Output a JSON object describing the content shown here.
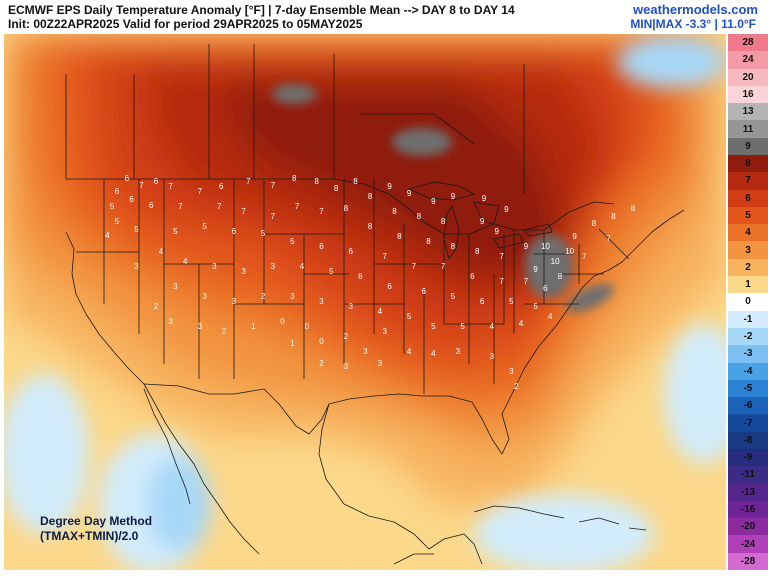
{
  "header": {
    "title": "ECMWF EPS Daily Temperature Anomaly [°F] | 7-day Ensemble Mean --> DAY 8 to DAY 14",
    "subtitle": "Init: 00Z22APR2025 Valid for period 29APR2025 to 05MAY2025",
    "brand": "weathermodels.com",
    "minmax": "MIN|MAX -3.3° | 11.0°F"
  },
  "method": {
    "line1": "Degree Day Method",
    "line2": "(TMAX+TMIN)/2.0"
  },
  "legend": {
    "items": [
      {
        "label": "28",
        "color": "#f07a8c",
        "text_color": "#111111"
      },
      {
        "label": "24",
        "color": "#f49aa6",
        "text_color": "#111111"
      },
      {
        "label": "20",
        "color": "#f8b8c0",
        "text_color": "#111111"
      },
      {
        "label": "16",
        "color": "#fbd3d8",
        "text_color": "#111111"
      },
      {
        "label": "13",
        "color": "#b4b4b4",
        "text_color": "#111111"
      },
      {
        "label": "11",
        "color": "#969696",
        "text_color": "#111111"
      },
      {
        "label": "9",
        "color": "#6e6e6e",
        "text_color": "#111111"
      },
      {
        "label": "8",
        "color": "#8f1c0c",
        "text_color": "#111111"
      },
      {
        "label": "7",
        "color": "#b52a10",
        "text_color": "#111111"
      },
      {
        "label": "6",
        "color": "#d13d14",
        "text_color": "#111111"
      },
      {
        "label": "5",
        "color": "#e2561c",
        "text_color": "#111111"
      },
      {
        "label": "4",
        "color": "#ec7428",
        "text_color": "#111111"
      },
      {
        "label": "3",
        "color": "#f29440",
        "text_color": "#111111"
      },
      {
        "label": "2",
        "color": "#f7b35e",
        "text_color": "#111111"
      },
      {
        "label": "1",
        "color": "#fbd88a",
        "text_color": "#111111"
      },
      {
        "label": "0",
        "color": "#ffffff",
        "text_color": "#111111"
      },
      {
        "label": "-1",
        "color": "#d2ecfb",
        "text_color": "#111111"
      },
      {
        "label": "-2",
        "color": "#a8d8f8",
        "text_color": "#111111"
      },
      {
        "label": "-3",
        "color": "#7cc1f2",
        "text_color": "#111111"
      },
      {
        "label": "-4",
        "color": "#4aa2e6",
        "text_color": "#111111"
      },
      {
        "label": "-5",
        "color": "#2a82d4",
        "text_color": "#111111"
      },
      {
        "label": "-6",
        "color": "#1b62b8",
        "text_color": "#111111"
      },
      {
        "label": "-7",
        "color": "#14499c",
        "text_color": "#111111"
      },
      {
        "label": "-8",
        "color": "#183a82",
        "text_color": "#111111"
      },
      {
        "label": "-9",
        "color": "#262d7e",
        "text_color": "#111111"
      },
      {
        "label": "-11",
        "color": "#3b2a86",
        "text_color": "#111111"
      },
      {
        "label": "-13",
        "color": "#54268e",
        "text_color": "#111111"
      },
      {
        "label": "-16",
        "color": "#6e2496",
        "text_color": "#111111"
      },
      {
        "label": "-20",
        "color": "#8c2aa0",
        "text_color": "#111111"
      },
      {
        "label": "-24",
        "color": "#b040b8",
        "text_color": "#111111"
      },
      {
        "label": "-28",
        "color": "#d36ad0",
        "text_color": "#111111"
      }
    ]
  },
  "station_values": [
    {
      "label": "6",
      "lon": -121.5,
      "lat": 48.3
    },
    {
      "label": "7",
      "lon": -120.0,
      "lat": 47.6
    },
    {
      "label": "6",
      "lon": -118.5,
      "lat": 48.0
    },
    {
      "label": "7",
      "lon": -117.0,
      "lat": 47.5
    },
    {
      "label": "6",
      "lon": -122.5,
      "lat": 47.0
    },
    {
      "label": "6",
      "lon": -121.0,
      "lat": 46.2
    },
    {
      "label": "5",
      "lon": -123.0,
      "lat": 45.5
    },
    {
      "label": "6",
      "lon": -119.0,
      "lat": 45.6
    },
    {
      "label": "5",
      "lon": -122.5,
      "lat": 44.0
    },
    {
      "label": "4",
      "lon": -123.5,
      "lat": 42.6
    },
    {
      "label": "5",
      "lon": -120.5,
      "lat": 43.2
    },
    {
      "label": "7",
      "lon": -116.0,
      "lat": 45.5
    },
    {
      "label": "7",
      "lon": -114.0,
      "lat": 47.0
    },
    {
      "label": "6",
      "lon": -111.8,
      "lat": 47.5
    },
    {
      "label": "7",
      "lon": -109.0,
      "lat": 48.0
    },
    {
      "label": "7",
      "lon": -106.5,
      "lat": 47.6
    },
    {
      "label": "8",
      "lon": -104.3,
      "lat": 48.3
    },
    {
      "label": "8",
      "lon": -102.0,
      "lat": 48.0
    },
    {
      "label": "8",
      "lon": -100.0,
      "lat": 47.3
    },
    {
      "label": "8",
      "lon": -98.0,
      "lat": 48.0
    },
    {
      "label": "7",
      "lon": -112.0,
      "lat": 45.5
    },
    {
      "label": "7",
      "lon": -109.5,
      "lat": 45.0
    },
    {
      "label": "7",
      "lon": -106.5,
      "lat": 44.5
    },
    {
      "label": "7",
      "lon": -104.0,
      "lat": 45.5
    },
    {
      "label": "7",
      "lon": -101.5,
      "lat": 45.0
    },
    {
      "label": "8",
      "lon": -99.0,
      "lat": 45.3
    },
    {
      "label": "8",
      "lon": -96.5,
      "lat": 46.5
    },
    {
      "label": "9",
      "lon": -94.5,
      "lat": 47.5
    },
    {
      "label": "9",
      "lon": -92.5,
      "lat": 46.8
    },
    {
      "label": "9",
      "lon": -90.0,
      "lat": 46.0
    },
    {
      "label": "9",
      "lon": -88.0,
      "lat": 46.5
    },
    {
      "label": "9",
      "lon": -84.8,
      "lat": 46.3
    },
    {
      "label": "9",
      "lon": -82.5,
      "lat": 45.2
    },
    {
      "label": "8",
      "lon": -94.0,
      "lat": 45.0
    },
    {
      "label": "8",
      "lon": -91.5,
      "lat": 44.5
    },
    {
      "label": "8",
      "lon": -89.0,
      "lat": 44.0
    },
    {
      "label": "9",
      "lon": -85.0,
      "lat": 44.0
    },
    {
      "label": "9",
      "lon": -83.5,
      "lat": 43.0
    },
    {
      "label": "8",
      "lon": -96.5,
      "lat": 43.5
    },
    {
      "label": "8",
      "lon": -93.5,
      "lat": 42.5
    },
    {
      "label": "8",
      "lon": -90.5,
      "lat": 42.0
    },
    {
      "label": "8",
      "lon": -88.0,
      "lat": 41.5
    },
    {
      "label": "8",
      "lon": -85.5,
      "lat": 41.0
    },
    {
      "label": "7",
      "lon": -83.0,
      "lat": 40.5
    },
    {
      "label": "9",
      "lon": -80.5,
      "lat": 41.5
    },
    {
      "label": "10",
      "lon": -78.5,
      "lat": 41.5
    },
    {
      "label": "10",
      "lon": -76.0,
      "lat": 41.0
    },
    {
      "label": "10",
      "lon": -77.5,
      "lat": 40.0
    },
    {
      "label": "9",
      "lon": -75.5,
      "lat": 42.5
    },
    {
      "label": "8",
      "lon": -73.5,
      "lat": 43.8
    },
    {
      "label": "8",
      "lon": -71.5,
      "lat": 44.5
    },
    {
      "label": "8",
      "lon": -69.5,
      "lat": 45.3
    },
    {
      "label": "7",
      "lon": -72.0,
      "lat": 42.3
    },
    {
      "label": "7",
      "lon": -74.5,
      "lat": 40.5
    },
    {
      "label": "9",
      "lon": -79.5,
      "lat": 39.2
    },
    {
      "label": "8",
      "lon": -77.0,
      "lat": 38.5
    },
    {
      "label": "7",
      "lon": -80.5,
      "lat": 38.0
    },
    {
      "label": "6",
      "lon": -78.5,
      "lat": 37.3
    },
    {
      "label": "7",
      "lon": -83.0,
      "lat": 38.0
    },
    {
      "label": "6",
      "lon": -86.0,
      "lat": 38.5
    },
    {
      "label": "7",
      "lon": -89.0,
      "lat": 39.5
    },
    {
      "label": "7",
      "lon": -92.0,
      "lat": 39.5
    },
    {
      "label": "7",
      "lon": -95.0,
      "lat": 40.5
    },
    {
      "label": "6",
      "lon": -98.5,
      "lat": 41.0
    },
    {
      "label": "6",
      "lon": -101.5,
      "lat": 41.5
    },
    {
      "label": "5",
      "lon": -104.5,
      "lat": 42.0
    },
    {
      "label": "5",
      "lon": -107.5,
      "lat": 42.8
    },
    {
      "label": "6",
      "lon": -110.5,
      "lat": 43.0
    },
    {
      "label": "5",
      "lon": -113.5,
      "lat": 43.5
    },
    {
      "label": "5",
      "lon": -116.5,
      "lat": 43.0
    },
    {
      "label": "4",
      "lon": -118.0,
      "lat": 41.0
    },
    {
      "label": "3",
      "lon": -120.5,
      "lat": 39.5
    },
    {
      "label": "4",
      "lon": -115.5,
      "lat": 40.0
    },
    {
      "label": "3",
      "lon": -112.5,
      "lat": 39.5
    },
    {
      "label": "3",
      "lon": -109.5,
      "lat": 39.0
    },
    {
      "label": "3",
      "lon": -106.5,
      "lat": 39.5
    },
    {
      "label": "4",
      "lon": -103.5,
      "lat": 39.5
    },
    {
      "label": "5",
      "lon": -100.5,
      "lat": 39.0
    },
    {
      "label": "6",
      "lon": -97.5,
      "lat": 38.5
    },
    {
      "label": "6",
      "lon": -94.5,
      "lat": 37.5
    },
    {
      "label": "6",
      "lon": -91.0,
      "lat": 37.0
    },
    {
      "label": "5",
      "lon": -88.0,
      "lat": 36.5
    },
    {
      "label": "6",
      "lon": -85.0,
      "lat": 36.0
    },
    {
      "label": "5",
      "lon": -82.0,
      "lat": 36.0
    },
    {
      "label": "5",
      "lon": -79.5,
      "lat": 35.5
    },
    {
      "label": "4",
      "lon": -78.0,
      "lat": 34.5
    },
    {
      "label": "4",
      "lon": -81.0,
      "lat": 33.8
    },
    {
      "label": "4",
      "lon": -84.0,
      "lat": 33.5
    },
    {
      "label": "5",
      "lon": -87.0,
      "lat": 33.5
    },
    {
      "label": "5",
      "lon": -90.0,
      "lat": 33.5
    },
    {
      "label": "5",
      "lon": -92.5,
      "lat": 34.5
    },
    {
      "label": "4",
      "lon": -95.5,
      "lat": 35.0
    },
    {
      "label": "3",
      "lon": -98.5,
      "lat": 35.5
    },
    {
      "label": "3",
      "lon": -101.5,
      "lat": 36.0
    },
    {
      "label": "3",
      "lon": -104.5,
      "lat": 36.5
    },
    {
      "label": "2",
      "lon": -107.5,
      "lat": 36.5
    },
    {
      "label": "3",
      "lon": -110.5,
      "lat": 36.0
    },
    {
      "label": "3",
      "lon": -113.5,
      "lat": 36.5
    },
    {
      "label": "3",
      "lon": -116.5,
      "lat": 37.5
    },
    {
      "label": "2",
      "lon": -118.5,
      "lat": 35.5
    },
    {
      "label": "3",
      "lon": -117.0,
      "lat": 34.0
    },
    {
      "label": "3",
      "lon": -114.0,
      "lat": 33.5
    },
    {
      "label": "2",
      "lon": -111.5,
      "lat": 33.0
    },
    {
      "label": "1",
      "lon": -108.5,
      "lat": 33.5
    },
    {
      "label": "0",
      "lon": -105.5,
      "lat": 34.0
    },
    {
      "label": "0",
      "lon": -103.0,
      "lat": 33.5
    },
    {
      "label": "1",
      "lon": -104.5,
      "lat": 31.8
    },
    {
      "label": "0",
      "lon": -101.5,
      "lat": 32.0
    },
    {
      "label": "2",
      "lon": -99.0,
      "lat": 32.5
    },
    {
      "label": "3",
      "lon": -97.0,
      "lat": 31.0
    },
    {
      "label": "3",
      "lon": -99.0,
      "lat": 29.5
    },
    {
      "label": "2",
      "lon": -101.5,
      "lat": 29.8
    },
    {
      "label": "3",
      "lon": -95.5,
      "lat": 29.8
    },
    {
      "label": "4",
      "lon": -92.5,
      "lat": 31.0
    },
    {
      "label": "4",
      "lon": -90.0,
      "lat": 30.8
    },
    {
      "label": "3",
      "lon": -87.5,
      "lat": 31.0
    },
    {
      "label": "3",
      "lon": -84.0,
      "lat": 30.5
    },
    {
      "label": "3",
      "lon": -82.0,
      "lat": 29.0
    },
    {
      "label": "2",
      "lon": -81.5,
      "lat": 27.5
    },
    {
      "label": "3",
      "lon": -95.0,
      "lat": 33.0
    }
  ]
}
